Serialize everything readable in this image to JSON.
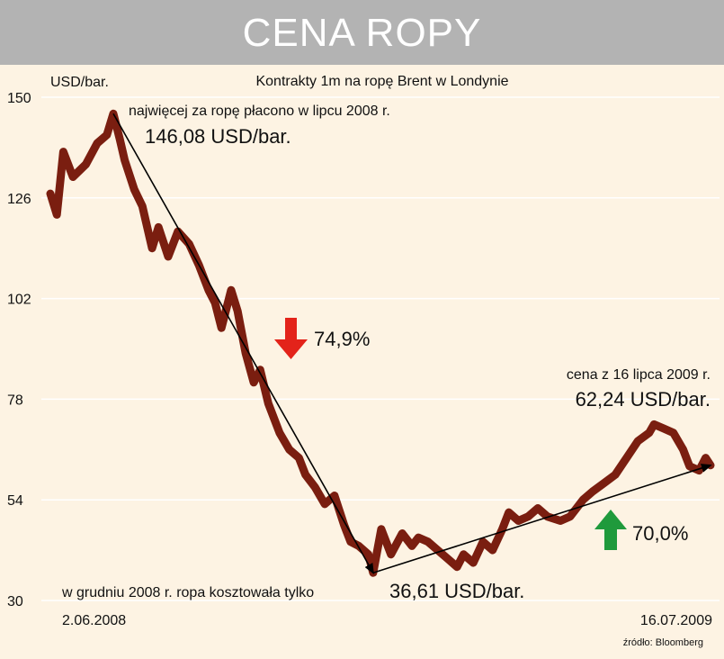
{
  "header": {
    "title": "CENA ROPY"
  },
  "chart_data": {
    "type": "line",
    "title": "Kontrakty 1m na ropę Brent w Londynie",
    "ylabel": "USD/bar.",
    "ylim": [
      30,
      150
    ],
    "yticks": [
      "30",
      "54",
      "78",
      "102",
      "126",
      "150"
    ],
    "grid": "horizontal",
    "x_start_label": "2.06.2008",
    "x_end_label": "16.07.2009",
    "series": [
      {
        "color": "#7a1e10",
        "x": [
          "2008-06-02",
          "2008-06-06",
          "2008-06-10",
          "2008-06-16",
          "2008-06-24",
          "2008-07-01",
          "2008-07-07",
          "2008-07-11",
          "2008-07-15",
          "2008-07-18",
          "2008-07-24",
          "2008-07-29",
          "2008-08-04",
          "2008-08-08",
          "2008-08-14",
          "2008-08-20",
          "2008-08-27",
          "2008-09-02",
          "2008-09-08",
          "2008-09-12",
          "2008-09-16",
          "2008-09-22",
          "2008-09-26",
          "2008-10-01",
          "2008-10-06",
          "2008-10-10",
          "2008-10-15",
          "2008-10-22",
          "2008-10-28",
          "2008-11-03",
          "2008-11-07",
          "2008-11-13",
          "2008-11-19",
          "2008-11-25",
          "2008-12-01",
          "2008-12-05",
          "2008-12-10",
          "2008-12-16",
          "2008-12-19",
          "2008-12-24",
          "2008-12-30",
          "2009-01-06",
          "2009-01-12",
          "2009-01-16",
          "2009-01-22",
          "2009-01-28",
          "2009-02-03",
          "2009-02-09",
          "2009-02-13",
          "2009-02-19",
          "2009-02-25",
          "2009-03-03",
          "2009-03-09",
          "2009-03-13",
          "2009-03-19",
          "2009-03-25",
          "2009-03-31",
          "2009-04-06",
          "2009-04-14",
          "2009-04-20",
          "2009-04-28",
          "2009-05-04",
          "2009-05-11",
          "2009-05-18",
          "2009-05-25",
          "2009-06-01",
          "2009-06-08",
          "2009-06-11",
          "2009-06-17",
          "2009-06-23",
          "2009-06-29",
          "2009-07-03",
          "2009-07-09",
          "2009-07-13",
          "2009-07-16"
        ],
        "y": [
          127,
          122,
          137,
          131,
          134,
          139,
          141,
          146.08,
          140,
          135,
          128,
          124,
          114,
          119,
          112,
          118,
          115,
          110,
          104,
          101,
          95,
          104,
          99,
          89,
          82,
          85,
          77,
          70,
          66,
          64,
          60,
          57,
          53,
          55,
          48,
          44,
          43,
          41,
          36.61,
          47,
          41,
          46,
          43,
          45,
          44,
          42,
          40,
          38,
          41,
          39,
          44,
          42,
          47,
          51,
          49,
          50,
          52,
          50,
          49,
          50,
          54,
          56,
          58,
          60,
          64,
          68,
          70,
          72,
          71,
          70,
          66,
          62,
          61,
          64,
          62.24
        ]
      }
    ],
    "annotations": [
      {
        "line1": "najwięcej za ropę płacono w lipcu 2008 r.",
        "line2": "146,08 USD/bar."
      },
      {
        "line1": "cena z 16 lipca 2009 r.",
        "line2": "62,24 USD/bar."
      },
      {
        "line1": "w grudniu 2008 r. ropa kosztowała tylko",
        "line2": "36,61 USD/bar."
      }
    ],
    "changes": [
      {
        "label": "74,9%",
        "direction": "down",
        "color": "#e3231a"
      },
      {
        "label": "70,0%",
        "direction": "up",
        "color": "#1f9a3c"
      }
    ],
    "source": "źródło: Bloomberg"
  }
}
